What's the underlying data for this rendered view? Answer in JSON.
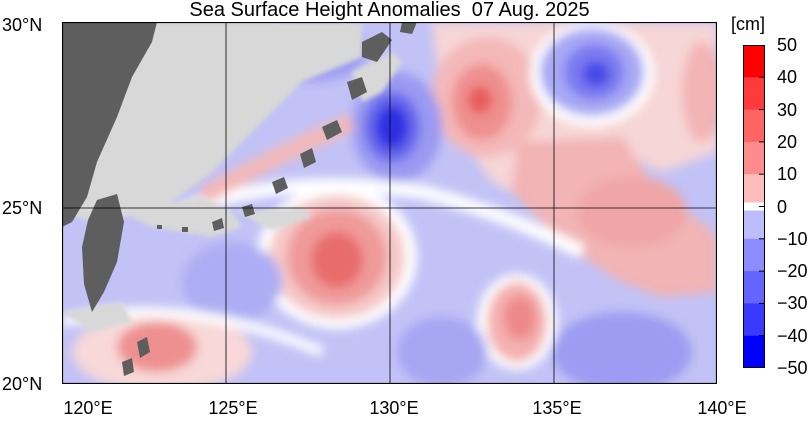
{
  "title": "Sea Surface Height Anomalies  07 Aug. 2025",
  "lat_labels": [
    "30°N",
    "25°N",
    "20°N"
  ],
  "lon_labels": [
    "120°E",
    "125°E",
    "130°E",
    "135°E",
    "140°E"
  ],
  "colorbar": {
    "unit": "[cm]",
    "labels": [
      "50",
      "40",
      "30",
      "20",
      "10",
      "0",
      "−10",
      "−20",
      "−30",
      "−40",
      "−50"
    ],
    "colors": [
      "#ff0000",
      "#ff3a3a",
      "#ff6464",
      "#ff8c8c",
      "#ffbcbc",
      "#ffffff",
      "#bcbcff",
      "#8c8cff",
      "#6464ff",
      "#3a3aff",
      "#0000ff"
    ]
  },
  "colors": {
    "land": "#5e5e5e",
    "masked": "#d8d8d8",
    "frame": "#000000"
  }
}
